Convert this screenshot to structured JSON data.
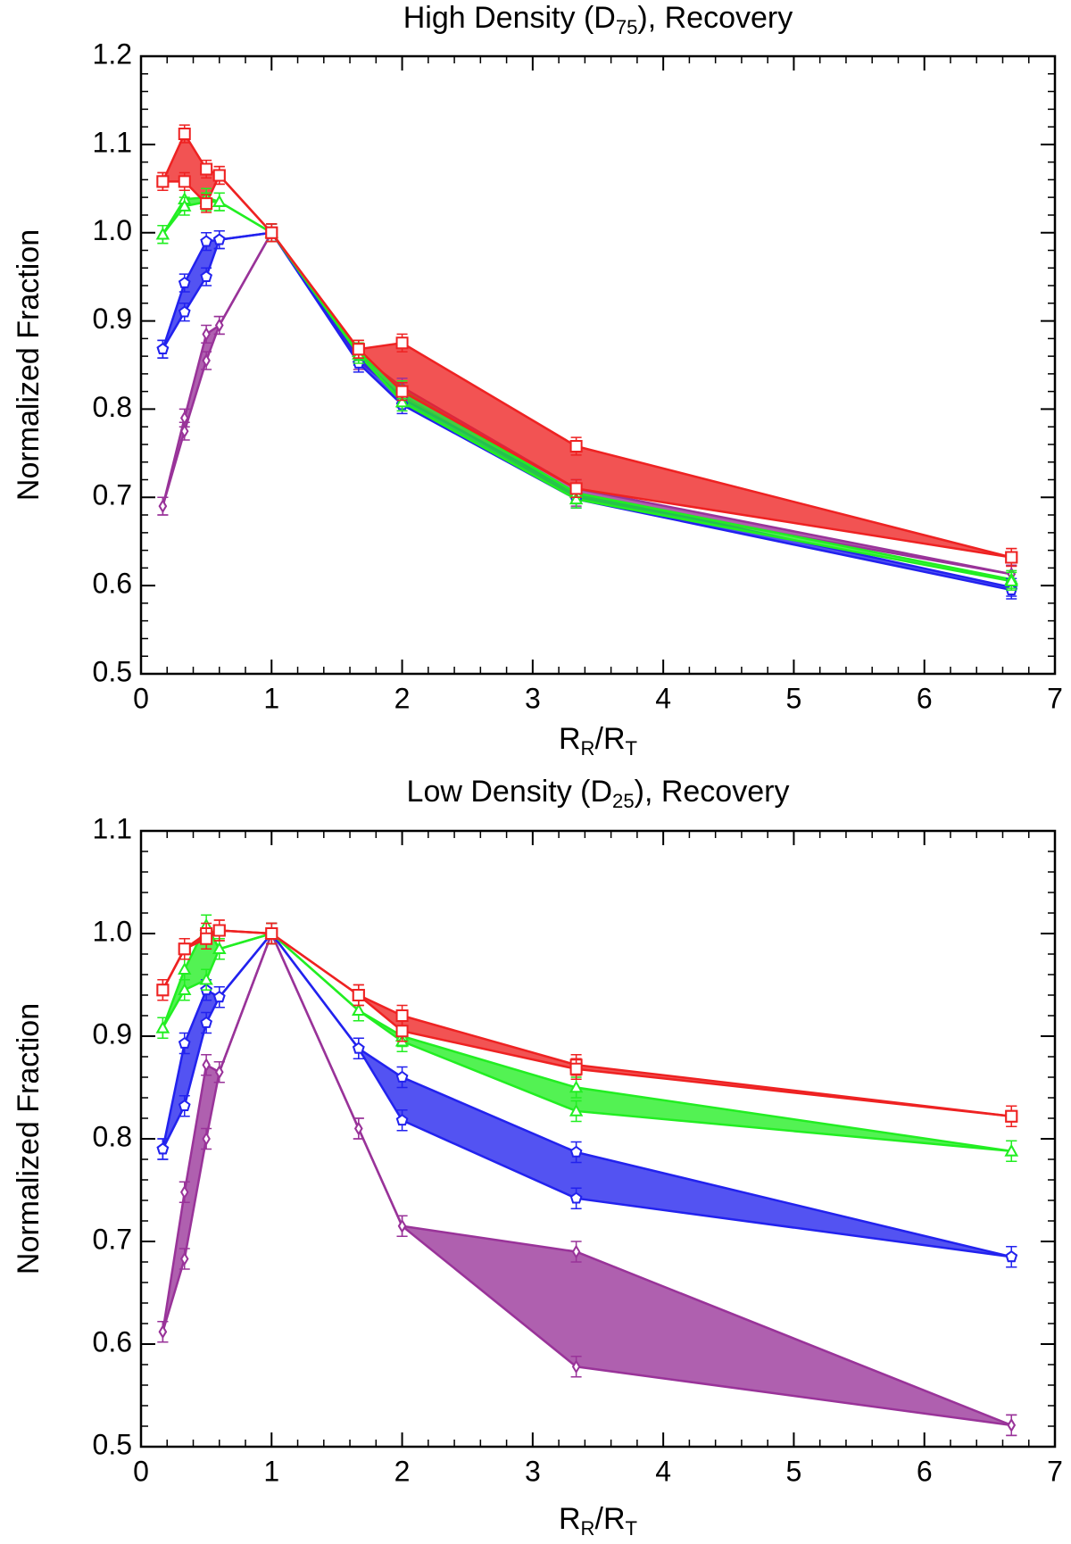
{
  "chart_data": [
    {
      "type": "band",
      "title_parts": [
        "High Density (D",
        "75",
        "), Recovery"
      ],
      "x_label_parts": [
        "R",
        "R",
        "/R",
        "T"
      ],
      "y_label": "Normalized Fraction",
      "x": [
        0.1667,
        0.3333,
        0.5,
        0.6,
        1,
        1.6667,
        2,
        3.3333,
        6.6667
      ],
      "error": 0.01,
      "xlim": [
        0,
        7
      ],
      "xticks": [
        0,
        1,
        2,
        3,
        4,
        5,
        6,
        7
      ],
      "ylim": [
        0.5,
        1.2
      ],
      "yticks": [
        0.5,
        0.6,
        0.7,
        0.8,
        0.9,
        {
          "value": 1,
          "label": "1.0"
        },
        1.1,
        1.2
      ],
      "minor_divisions": {
        "x": 5,
        "y": 5
      },
      "series": [
        {
          "color": "#993399",
          "marker": "diamond",
          "upper": [
            0.69,
            0.79,
            0.885,
            0.895,
            1.0,
            0.862,
            0.825,
            0.71,
            0.613
          ],
          "lower": [
            0.69,
            0.775,
            0.855,
            0.895,
            1.0,
            0.855,
            0.815,
            0.7,
            0.613
          ]
        },
        {
          "color": "#2222ee",
          "marker": "pentagon",
          "upper": [
            0.868,
            0.943,
            0.99,
            0.992,
            1.0,
            0.86,
            0.812,
            0.705,
            0.598
          ],
          "lower": [
            0.868,
            0.91,
            0.95,
            0.992,
            1.0,
            0.852,
            0.805,
            0.698,
            0.595
          ]
        },
        {
          "color": "#22ee22",
          "marker": "triangle",
          "upper": [
            0.998,
            1.038,
            1.04,
            1.035,
            1.0,
            0.865,
            0.822,
            0.705,
            0.607
          ],
          "lower": [
            0.998,
            1.03,
            1.035,
            1.035,
            1.0,
            0.862,
            0.808,
            0.698,
            0.605
          ]
        },
        {
          "color": "#ee2222",
          "marker": "square",
          "upper": [
            1.058,
            1.112,
            1.072,
            1.065,
            1.0,
            0.868,
            0.875,
            0.758,
            0.632
          ],
          "lower": [
            1.058,
            1.058,
            1.033,
            1.065,
            1.0,
            0.868,
            0.82,
            0.71,
            0.632
          ]
        }
      ]
    },
    {
      "type": "band",
      "title_parts": [
        "Low Density (D",
        "25",
        "), Recovery"
      ],
      "x_label_parts": [
        "R",
        "R",
        "/R",
        "T"
      ],
      "y_label": "Normalized Fraction",
      "x": [
        0.1667,
        0.3333,
        0.5,
        0.6,
        1,
        1.6667,
        2,
        3.3333,
        6.6667
      ],
      "error": 0.01,
      "xlim": [
        0,
        7
      ],
      "xticks": [
        0,
        1,
        2,
        3,
        4,
        5,
        6,
        7
      ],
      "ylim": [
        0.5,
        1.1
      ],
      "yticks": [
        0.5,
        0.6,
        0.7,
        0.8,
        0.9,
        {
          "value": 1,
          "label": "1.0"
        },
        1.1
      ],
      "minor_divisions": {
        "x": 5,
        "y": 5
      },
      "series": [
        {
          "color": "#993399",
          "marker": "diamond",
          "upper": [
            0.612,
            0.748,
            0.872,
            0.865,
            1.0,
            0.81,
            0.715,
            0.69,
            0.521
          ],
          "lower": [
            0.612,
            0.683,
            0.8,
            0.865,
            1.0,
            0.81,
            0.715,
            0.578,
            0.521
          ]
        },
        {
          "color": "#2222ee",
          "marker": "pentagon",
          "upper": [
            0.79,
            0.893,
            0.945,
            0.938,
            1.0,
            0.888,
            0.86,
            0.787,
            0.685
          ],
          "lower": [
            0.79,
            0.832,
            0.913,
            0.938,
            1.0,
            0.888,
            0.818,
            0.742,
            0.685
          ]
        },
        {
          "color": "#22ee22",
          "marker": "triangle",
          "upper": [
            0.908,
            0.965,
            1.008,
            0.985,
            1.0,
            0.925,
            0.9,
            0.85,
            0.788
          ],
          "lower": [
            0.908,
            0.945,
            0.955,
            0.985,
            1.0,
            0.925,
            0.895,
            0.827,
            0.788
          ]
        },
        {
          "color": "#ee2222",
          "marker": "square",
          "upper": [
            0.945,
            0.985,
            1.0,
            1.003,
            1.0,
            0.94,
            0.92,
            0.872,
            0.822
          ],
          "lower": [
            0.945,
            0.985,
            0.995,
            1.003,
            1.0,
            0.94,
            0.905,
            0.868,
            0.822
          ]
        }
      ]
    }
  ]
}
